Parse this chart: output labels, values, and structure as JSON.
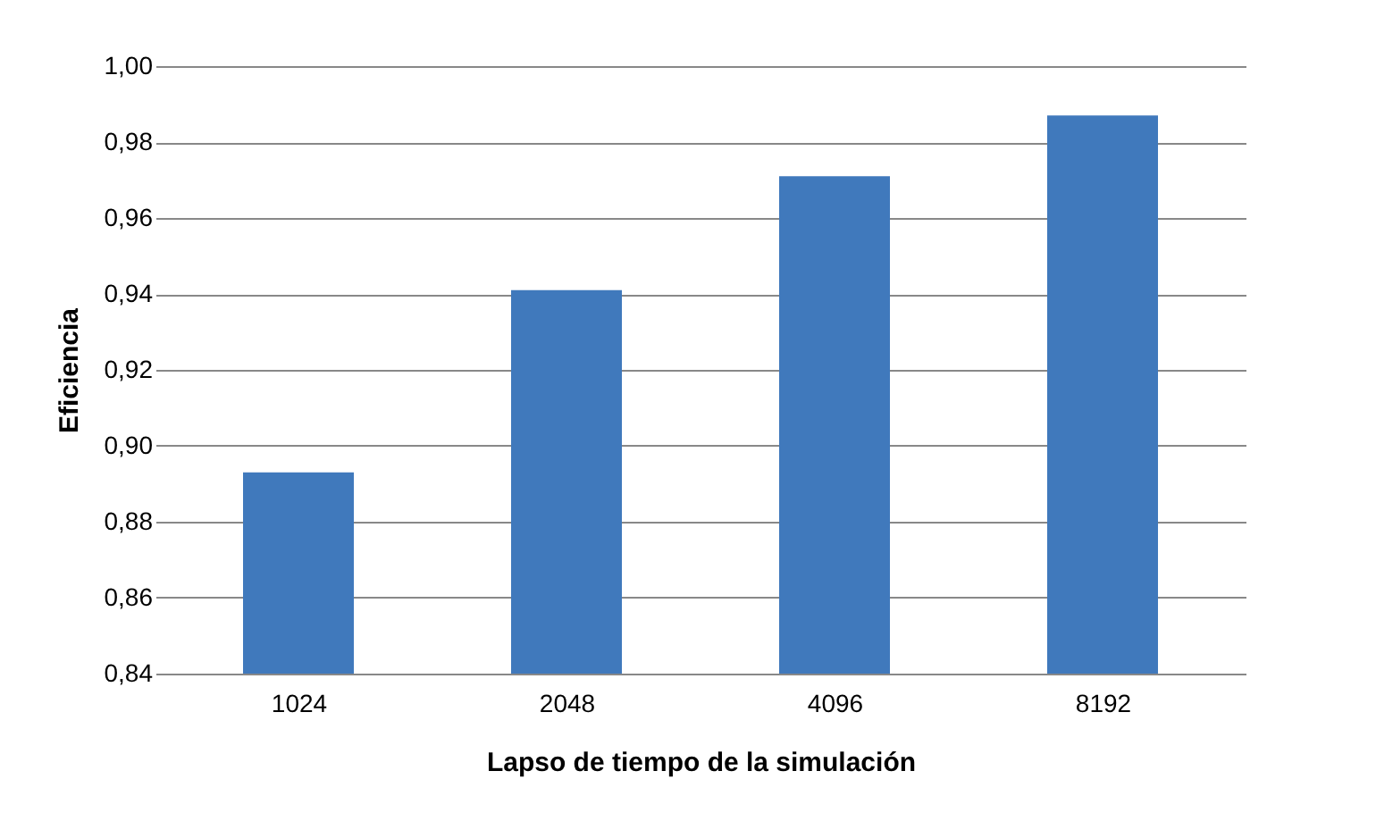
{
  "chart_data": {
    "type": "bar",
    "xlabel": "Lapso de tiempo de la simulación",
    "ylabel": "Eficiencia",
    "categories": [
      "1024",
      "2048",
      "4096",
      "8192"
    ],
    "values": [
      0.893,
      0.941,
      0.971,
      0.987
    ],
    "color": "#4079bc",
    "ylim": [
      0.84,
      1.0
    ],
    "yticks": [
      {
        "value": 0.84,
        "label": "0,84"
      },
      {
        "value": 0.86,
        "label": "0,86"
      },
      {
        "value": 0.88,
        "label": "0,88"
      },
      {
        "value": 0.9,
        "label": "0,90"
      },
      {
        "value": 0.92,
        "label": "0,92"
      },
      {
        "value": 0.94,
        "label": "0,94"
      },
      {
        "value": 0.96,
        "label": "0,96"
      },
      {
        "value": 0.98,
        "label": "0,98"
      },
      {
        "value": 1.0,
        "label": "1,00"
      }
    ],
    "grid": "y"
  }
}
